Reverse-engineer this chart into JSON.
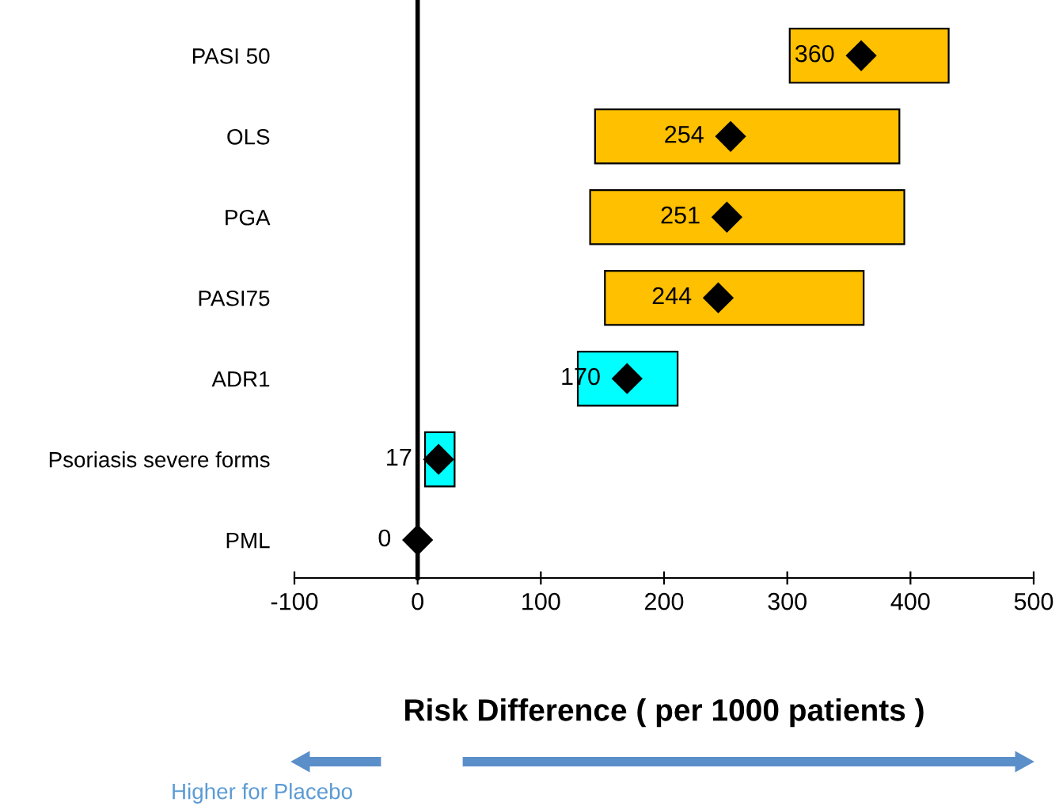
{
  "chart_data": {
    "type": "bar",
    "orientation": "horizontal",
    "xlabel": "Risk Difference ( per 1000 patients )",
    "categories": [
      "PASI 50",
      "OLS",
      "PGA",
      "PASI75",
      "ADR1",
      "Psoriasis severe forms",
      "PML"
    ],
    "series": [
      {
        "colors": [
          "#ffc000",
          "#ffc000",
          "#ffc000",
          "#ffc000",
          "#00ffff",
          "#00ffff",
          "#00ffff"
        ],
        "base": [
          302,
          144,
          140,
          152,
          130,
          6,
          null
        ],
        "values": [
          129,
          247,
          255,
          210,
          81,
          24,
          null
        ]
      },
      {
        "type": "scatter",
        "color": "#000000",
        "marker": "diamond",
        "values": [
          360,
          254,
          251,
          244,
          170,
          17,
          0
        ],
        "value_labels": [
          "360",
          "254",
          "251",
          "244",
          "170",
          "17",
          "0"
        ]
      }
    ],
    "xlim": [
      -100,
      500
    ],
    "xticks": [
      -100,
      0,
      100,
      200,
      300,
      400,
      500
    ],
    "legend": false,
    "annotations": [
      "Higher for Placebo"
    ]
  }
}
